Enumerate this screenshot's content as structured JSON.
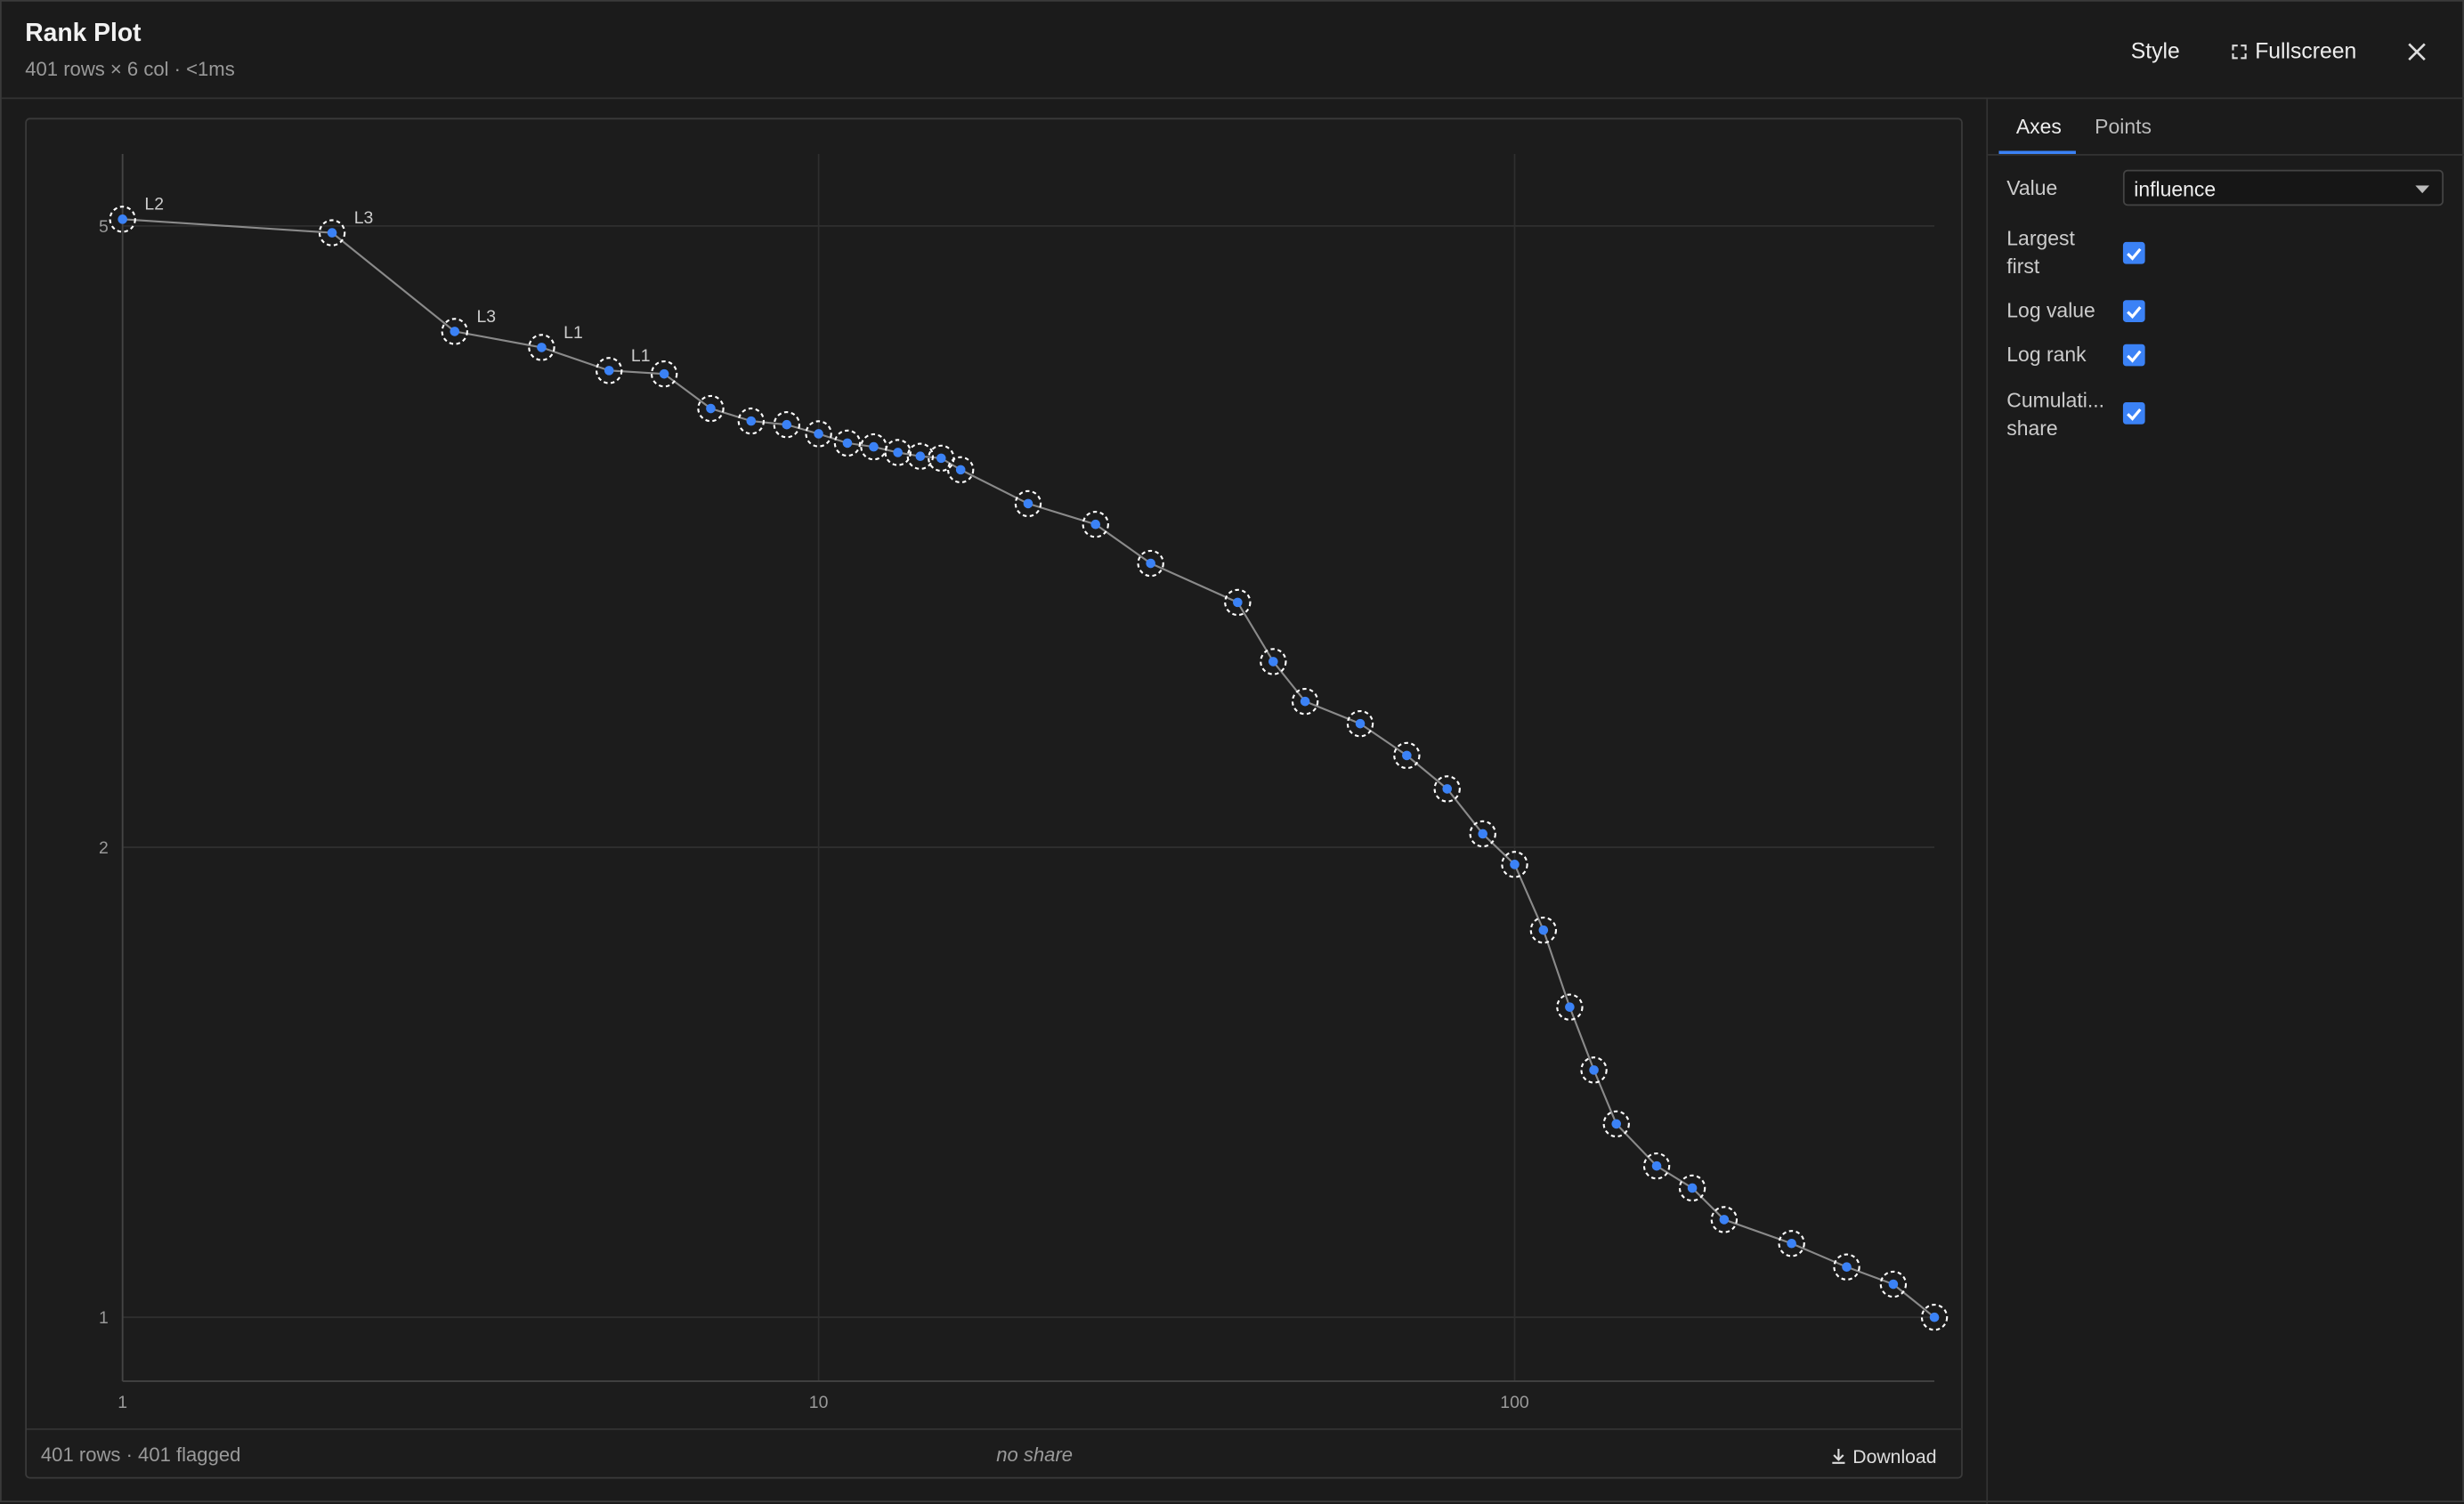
{
  "header": {
    "title": "Rank Plot",
    "subtitle": "401 rows × 6 col · <1ms",
    "style_button": "Style",
    "fullscreen_button": "Fullscreen"
  },
  "sidebar": {
    "tabs": [
      "Axes",
      "Points"
    ],
    "value_label": "Value",
    "value_select": "influence",
    "controls": [
      {
        "label": "Largest first",
        "checked": true
      },
      {
        "label": "Log value",
        "checked": true
      },
      {
        "label": "Log rank",
        "checked": true
      },
      {
        "label": "Cumulati... share",
        "checked": true
      }
    ]
  },
  "footer": {
    "summary": "401 rows · 401 flagged",
    "share": "no share",
    "download": "Download"
  },
  "chart_data": {
    "type": "scatter",
    "x_log": true,
    "y_log": true,
    "grid": true,
    "xlim": [
      1,
      401
    ],
    "ylim": [
      0.91,
      5.56
    ],
    "xticks": [
      1,
      10,
      100
    ],
    "yticks": [
      1,
      2,
      5
    ],
    "series": [
      {
        "color": "#3b82f6",
        "line_color": "#8a8a8a",
        "x": [
          1,
          2,
          3,
          4,
          5,
          6,
          7,
          8,
          9,
          10,
          11,
          12,
          13,
          14,
          15,
          16,
          20,
          25,
          30,
          40,
          45,
          50,
          60,
          70,
          80,
          90,
          100,
          110,
          120,
          130,
          140,
          160,
          180,
          200,
          250,
          300,
          350,
          401
        ],
        "values": [
          5.05,
          4.95,
          4.28,
          4.18,
          4.04,
          4.02,
          3.82,
          3.75,
          3.73,
          3.68,
          3.63,
          3.61,
          3.58,
          3.56,
          3.55,
          3.49,
          3.32,
          3.22,
          3.04,
          2.87,
          2.63,
          2.48,
          2.4,
          2.29,
          2.18,
          2.04,
          1.95,
          1.77,
          1.58,
          1.44,
          1.33,
          1.25,
          1.21,
          1.155,
          1.115,
          1.077,
          1.05,
          1.0
        ],
        "point_labels": [
          "L2",
          "L3",
          "L3",
          "L1",
          "L1",
          null,
          null,
          null,
          null,
          null,
          null,
          null,
          null,
          null,
          null,
          null,
          null,
          null,
          null,
          null,
          null,
          null,
          null,
          null,
          null,
          null,
          null,
          null,
          null,
          null,
          null,
          null,
          null,
          null,
          null,
          null,
          null,
          null
        ]
      }
    ]
  }
}
